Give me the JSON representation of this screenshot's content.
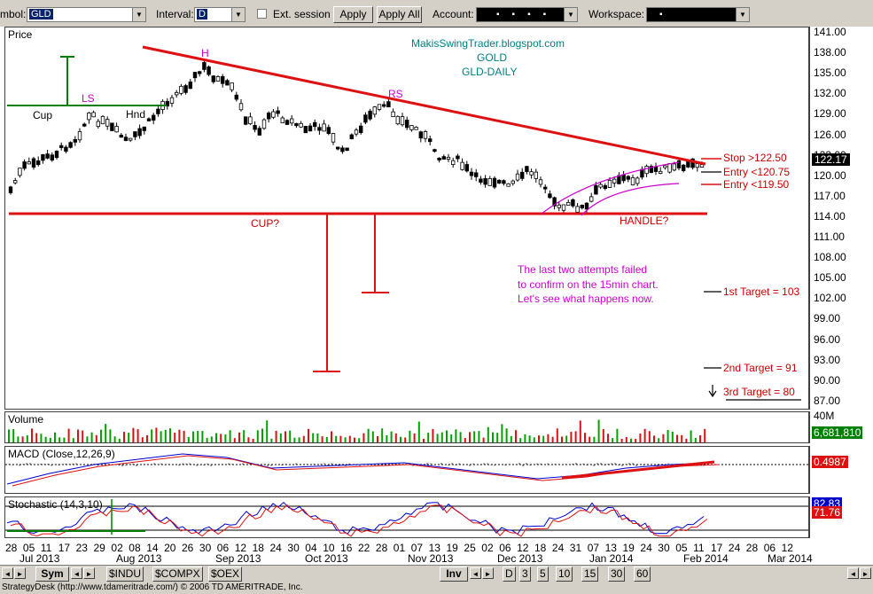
{
  "toolbar": {
    "symbol_label": "mbol:",
    "symbol_value": "GLD",
    "interval_label": "Interval:",
    "interval_value": "D",
    "ext_session_label": "Ext. session",
    "apply_label": "Apply",
    "apply_all_label": "Apply All",
    "account_label": "Account:",
    "workspace_label": "Workspace:"
  },
  "price_panel": {
    "title": "Price",
    "watermark": [
      "MakisSwingTrader.blogspot.com",
      "GOLD",
      "GLD-DAILY"
    ],
    "pattern_labels": {
      "ls": "LS",
      "h": "H",
      "rs": "RS",
      "cup": "Cup",
      "hnd": "Hnd",
      "cup_q": "CUP?",
      "handle_q": "HANDLE?"
    },
    "annotation": [
      "The last two attempts failed",
      "to confirm on the 15min chart.",
      "Let's see what happens now."
    ],
    "levels": {
      "stop": "Stop >122.50",
      "entry1": "Entry <120.75",
      "entry2": "Entry <119.50",
      "target1": "1st Target = 103",
      "target2": "2nd Target = 91",
      "target3": "3rd Target = 80"
    },
    "axis_ticks": [
      "141.00",
      "138.00",
      "135.00",
      "132.00",
      "129.00",
      "126.00",
      "123.00",
      "120.00",
      "117.00",
      "114.00",
      "111.00",
      "108.00",
      "105.00",
      "102.00",
      "99.00",
      "96.00",
      "93.00",
      "90.00",
      "87.00"
    ],
    "last_price": "122.17"
  },
  "volume_panel": {
    "title": "Volume",
    "axis_top": "40M",
    "last_value": "6,681,810"
  },
  "macd_panel": {
    "title": "MACD (Close,12,26,9)",
    "last_value": "0.4987"
  },
  "stoch_panel": {
    "title": "Stochastic (14,3,10)",
    "value_k": "82.83",
    "value_d": "71.76"
  },
  "date_axis": {
    "days": [
      "28",
      "05",
      "11",
      "17",
      "23",
      "29",
      "02",
      "08",
      "14",
      "20",
      "26",
      "30",
      "06",
      "12",
      "18",
      "24",
      "30",
      "04",
      "10",
      "16",
      "22",
      "28",
      "01",
      "07",
      "13",
      "19",
      "25",
      "02",
      "06",
      "12",
      "18",
      "24",
      "31",
      "07",
      "13",
      "19",
      "24",
      "30",
      "05",
      "11",
      "17",
      "24",
      "28",
      "06",
      "12"
    ],
    "months": [
      "Jul 2013",
      "Aug 2013",
      "Sep 2013",
      "Oct 2013",
      "Nov 2013",
      "Dec 2013",
      "Jan 2014",
      "Feb 2014",
      "Mar 2014"
    ]
  },
  "bottom_bar": {
    "sym_tab": "Sym",
    "symbol_tabs": [
      "$INDU",
      "$COMPX",
      "$OEX"
    ],
    "inv_tab": "Inv",
    "interval_tabs": [
      "D",
      "3",
      "5",
      "10",
      "15",
      "30",
      "60"
    ]
  },
  "status_text": "StrategyDesk (http://www.tdameritrade.com/) © 2006 TD AMERITRADE, Inc.",
  "colors": {
    "red": "#dd1111",
    "green": "#008000",
    "blue": "#0000cc",
    "magenta": "#cc00cc",
    "selection": "#0a246a"
  }
}
